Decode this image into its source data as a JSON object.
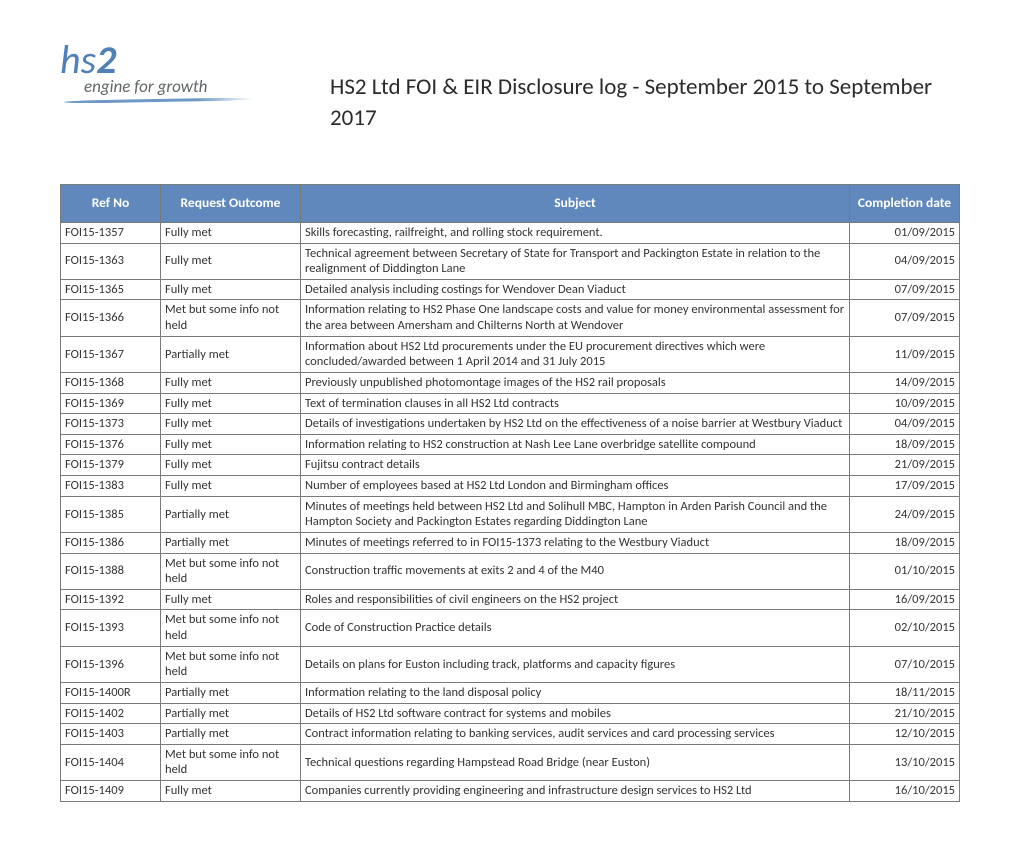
{
  "title": "HS2 Ltd FOI & EIR Disclosure log - September 2015 to September 2017",
  "logo": {
    "brand": "hs",
    "brand2": "2",
    "tag": "engine for growth"
  },
  "headers": {
    "ref": "Ref No",
    "outcome": "Request Outcome",
    "subject": "Subject",
    "date": "Completion date"
  },
  "rows": [
    {
      "ref": "FOI15-1357",
      "outcome": "Fully met",
      "subject": "Skills forecasting, railfreight, and rolling stock requirement.",
      "date": "01/09/2015"
    },
    {
      "ref": "FOI15-1363",
      "outcome": "Fully met",
      "subject": "Technical agreement between Secretary of State for Transport and Packington Estate in relation to the realignment of Diddington Lane",
      "date": "04/09/2015"
    },
    {
      "ref": "FOI15-1365",
      "outcome": "Fully met",
      "subject": "Detailed analysis including costings for Wendover Dean Viaduct",
      "date": "07/09/2015"
    },
    {
      "ref": "FOI15-1366",
      "outcome": "Met but some info not held",
      "subject": "Information relating to HS2 Phase One landscape costs and value for money environmental assessment for the area between Amersham and Chilterns North at Wendover",
      "date": "07/09/2015"
    },
    {
      "ref": "FOI15-1367",
      "outcome": "Partially met",
      "subject": "Information about HS2 Ltd procurements under the EU procurement directives which were concluded/awarded between 1 April 2014 and 31 July 2015",
      "date": "11/09/2015"
    },
    {
      "ref": "FOI15-1368",
      "outcome": "Fully met",
      "subject": "Previously unpublished photomontage images of the HS2 rail proposals",
      "date": "14/09/2015"
    },
    {
      "ref": "FOI15-1369",
      "outcome": "Fully met",
      "subject": "Text of termination clauses in all HS2 Ltd contracts",
      "date": "10/09/2015"
    },
    {
      "ref": "FOI15-1373",
      "outcome": "Fully met",
      "subject": "Details of investigations undertaken by HS2 Ltd on the effectiveness of a noise barrier at Westbury Viaduct",
      "date": "04/09/2015"
    },
    {
      "ref": "FOI15-1376",
      "outcome": "Fully met",
      "subject": "Information relating to HS2 construction at Nash Lee Lane overbridge satellite compound",
      "date": "18/09/2015"
    },
    {
      "ref": "FOI15-1379",
      "outcome": "Fully met",
      "subject": "Fujitsu contract details",
      "date": "21/09/2015"
    },
    {
      "ref": "FOI15-1383",
      "outcome": "Fully met",
      "subject": "Number of employees based at HS2 Ltd London and Birmingham offices",
      "date": "17/09/2015"
    },
    {
      "ref": "FOI15-1385",
      "outcome": "Partially met",
      "subject": "Minutes of meetings held between HS2 Ltd and Solihull MBC, Hampton in Arden Parish Council and the Hampton Society and Packington Estates regarding Diddington Lane",
      "date": "24/09/2015"
    },
    {
      "ref": "FOI15-1386",
      "outcome": "Partially met",
      "subject": "Minutes of meetings referred to in FOI15-1373 relating to the Westbury Viaduct",
      "date": "18/09/2015"
    },
    {
      "ref": "FOI15-1388",
      "outcome": "Met but some info not held",
      "subject": "Construction traffic movements at exits 2 and 4 of the M40",
      "date": "01/10/2015"
    },
    {
      "ref": "FOI15-1392",
      "outcome": "Fully met",
      "subject": "Roles and responsibilities of civil engineers on the HS2 project",
      "date": "16/09/2015"
    },
    {
      "ref": "FOI15-1393",
      "outcome": "Met but some info not held",
      "subject": "Code of Construction Practice details",
      "date": "02/10/2015"
    },
    {
      "ref": "FOI15-1396",
      "outcome": "Met but some info not held",
      "subject": "Details on plans for Euston including track, platforms and capacity figures",
      "date": "07/10/2015"
    },
    {
      "ref": "FOI15-1400R",
      "outcome": "Partially met",
      "subject": "Information relating to the land disposal policy",
      "date": "18/11/2015"
    },
    {
      "ref": "FOI15-1402",
      "outcome": "Partially met",
      "subject": "Details of HS2 Ltd software contract for systems and mobiles",
      "date": "21/10/2015"
    },
    {
      "ref": "FOI15-1403",
      "outcome": "Partially met",
      "subject": "Contract information relating to banking services, audit services and card processing services",
      "date": "12/10/2015"
    },
    {
      "ref": "FOI15-1404",
      "outcome": "Met but some info not held",
      "subject": "Technical questions regarding Hampstead Road Bridge (near Euston)",
      "date": "13/10/2015"
    },
    {
      "ref": "FOI15-1409",
      "outcome": "Fully met",
      "subject": "Companies currently providing engineering and infrastructure design services to HS2 Ltd",
      "date": "16/10/2015"
    }
  ]
}
